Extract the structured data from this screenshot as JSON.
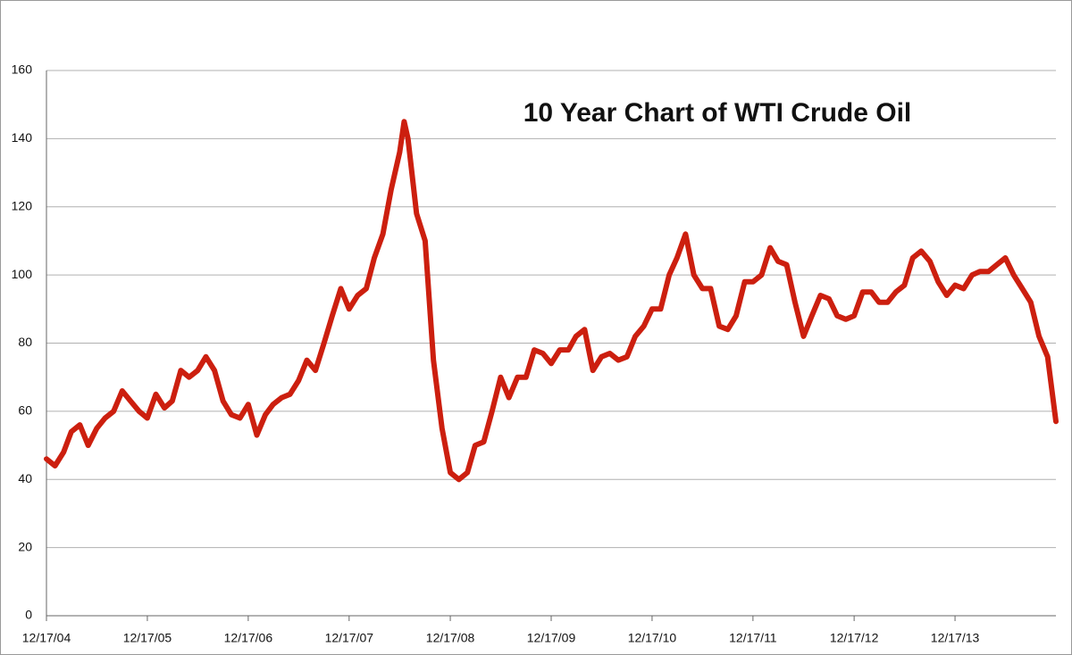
{
  "chart_data": {
    "type": "line",
    "title": "10 Year Chart of WTI Crude Oil",
    "x": [
      "2004-12-17",
      "2005-01-17",
      "2005-02-17",
      "2005-03-17",
      "2005-04-17",
      "2005-05-17",
      "2005-06-17",
      "2005-07-17",
      "2005-08-17",
      "2005-09-17",
      "2005-10-17",
      "2005-11-17",
      "2005-12-17",
      "2006-01-17",
      "2006-02-17",
      "2006-03-17",
      "2006-04-17",
      "2006-05-17",
      "2006-06-17",
      "2006-07-17",
      "2006-08-17",
      "2006-09-17",
      "2006-10-17",
      "2006-11-17",
      "2006-12-17",
      "2007-01-17",
      "2007-02-17",
      "2007-03-17",
      "2007-04-17",
      "2007-05-17",
      "2007-06-17",
      "2007-07-17",
      "2007-08-17",
      "2007-09-17",
      "2007-10-17",
      "2007-11-17",
      "2007-12-17",
      "2008-01-17",
      "2008-02-17",
      "2008-03-17",
      "2008-04-17",
      "2008-05-17",
      "2008-06-17",
      "2008-07-03",
      "2008-07-17",
      "2008-08-17",
      "2008-09-17",
      "2008-10-17",
      "2008-11-17",
      "2008-12-17",
      "2009-01-17",
      "2009-02-17",
      "2009-03-17",
      "2009-04-17",
      "2009-05-17",
      "2009-06-17",
      "2009-07-17",
      "2009-08-17",
      "2009-09-17",
      "2009-10-17",
      "2009-11-17",
      "2009-12-17",
      "2010-01-17",
      "2010-02-17",
      "2010-03-17",
      "2010-04-17",
      "2010-05-17",
      "2010-06-17",
      "2010-07-17",
      "2010-08-17",
      "2010-09-17",
      "2010-10-17",
      "2010-11-17",
      "2010-12-17",
      "2011-01-17",
      "2011-02-17",
      "2011-03-17",
      "2011-04-17",
      "2011-05-17",
      "2011-06-17",
      "2011-07-17",
      "2011-08-17",
      "2011-09-17",
      "2011-10-17",
      "2011-11-17",
      "2011-12-17",
      "2012-01-17",
      "2012-02-17",
      "2012-03-17",
      "2012-04-17",
      "2012-05-17",
      "2012-06-17",
      "2012-07-17",
      "2012-08-17",
      "2012-09-17",
      "2012-10-17",
      "2012-11-17",
      "2012-12-17",
      "2013-01-17",
      "2013-02-17",
      "2013-03-17",
      "2013-04-17",
      "2013-05-17",
      "2013-06-17",
      "2013-07-17",
      "2013-08-17",
      "2013-09-17",
      "2013-10-17",
      "2013-11-17",
      "2013-12-17",
      "2014-01-17",
      "2014-02-17",
      "2014-03-17",
      "2014-04-17",
      "2014-05-17",
      "2014-06-17",
      "2014-07-17",
      "2014-08-17",
      "2014-09-17",
      "2014-10-17",
      "2014-11-17",
      "2014-12-17"
    ],
    "series": [
      {
        "name": "WTI Crude Oil",
        "color": "#cc1f0f",
        "values": [
          46,
          44,
          48,
          54,
          56,
          50,
          55,
          58,
          60,
          66,
          63,
          60,
          58,
          65,
          61,
          63,
          72,
          70,
          72,
          76,
          72,
          63,
          59,
          58,
          62,
          53,
          59,
          62,
          64,
          65,
          69,
          75,
          72,
          80,
          88,
          96,
          90,
          94,
          96,
          105,
          112,
          125,
          136,
          145,
          140,
          118,
          110,
          75,
          55,
          42,
          40,
          42,
          50,
          51,
          60,
          70,
          64,
          70,
          70,
          78,
          77,
          74,
          78,
          78,
          82,
          84,
          72,
          76,
          77,
          75,
          76,
          82,
          85,
          90,
          90,
          100,
          105,
          112,
          100,
          96,
          96,
          85,
          84,
          88,
          98,
          98,
          100,
          108,
          104,
          103,
          92,
          82,
          88,
          94,
          93,
          88,
          87,
          88,
          95,
          95,
          92,
          92,
          95,
          97,
          105,
          107,
          104,
          98,
          94,
          97,
          96,
          100,
          101,
          101,
          103,
          105,
          100,
          96,
          92,
          82,
          76,
          57
        ]
      }
    ],
    "xlim": [
      "2004-12-17",
      "2014-12-17"
    ],
    "xticks": [
      {
        "value": "2004-12-17",
        "label": "12/17/04"
      },
      {
        "value": "2005-12-17",
        "label": "12/17/05"
      },
      {
        "value": "2006-12-17",
        "label": "12/17/06"
      },
      {
        "value": "2007-12-17",
        "label": "12/17/07"
      },
      {
        "value": "2008-12-17",
        "label": "12/17/08"
      },
      {
        "value": "2009-12-17",
        "label": "12/17/09"
      },
      {
        "value": "2010-12-17",
        "label": "12/17/10"
      },
      {
        "value": "2011-12-17",
        "label": "12/17/11"
      },
      {
        "value": "2012-12-17",
        "label": "12/17/12"
      },
      {
        "value": "2013-12-17",
        "label": "12/17/13"
      }
    ],
    "ylim": [
      0,
      160
    ],
    "yticks": [
      0,
      20,
      40,
      60,
      80,
      100,
      120,
      140,
      160
    ],
    "grid": true
  }
}
